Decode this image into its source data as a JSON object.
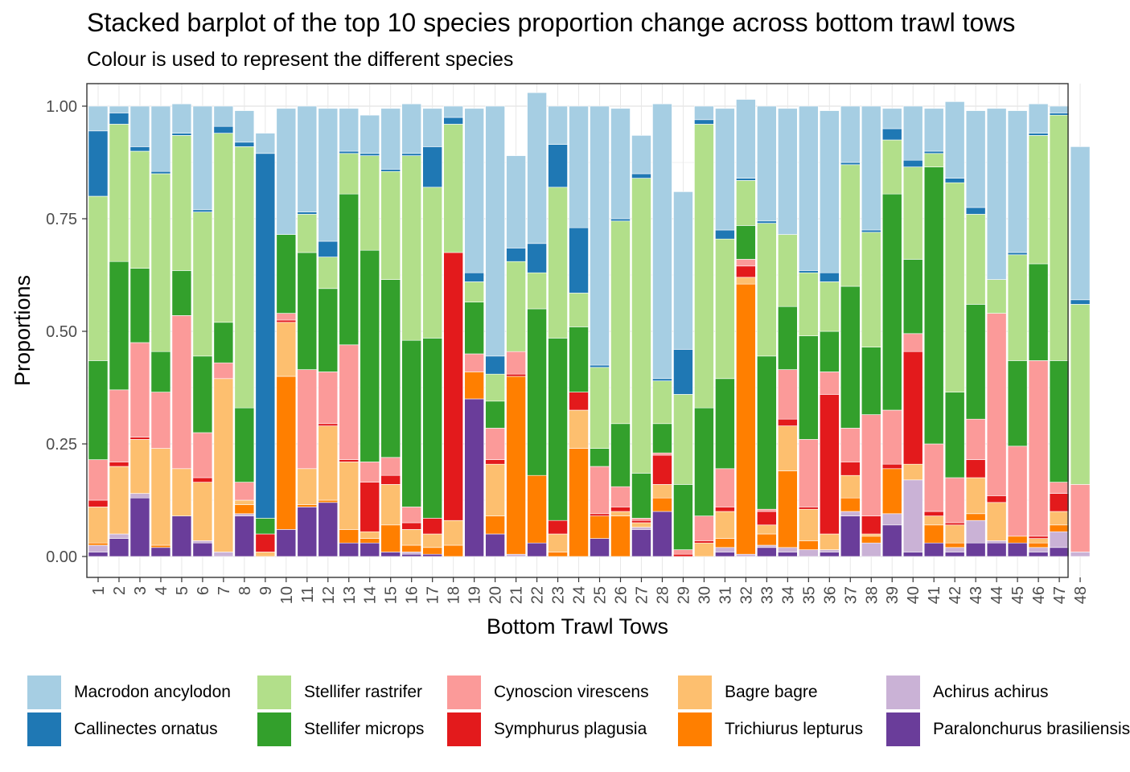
{
  "title": "Stacked barplot of the top 10 species proportion change across bottom trawl tows",
  "subtitle": "Colour is used to represent the different species",
  "chart_data": {
    "type": "bar",
    "stacked": true,
    "xlabel": "Bottom Trawl Tows",
    "ylabel": "Proportions",
    "ylim": [
      0,
      1
    ],
    "yticks": [
      "0.00",
      "0.25",
      "0.50",
      "0.75",
      "1.00"
    ],
    "grid": true,
    "legend_position": "bottom",
    "categories": [
      "1",
      "2",
      "3",
      "4",
      "5",
      "6",
      "7",
      "8",
      "9",
      "10",
      "11",
      "12",
      "13",
      "14",
      "15",
      "16",
      "17",
      "18",
      "19",
      "20",
      "21",
      "22",
      "23",
      "24",
      "25",
      "26",
      "27",
      "28",
      "29",
      "30",
      "31",
      "32",
      "33",
      "34",
      "35",
      "36",
      "37",
      "38",
      "39",
      "40",
      "41",
      "42",
      "43",
      "44",
      "45",
      "46",
      "47",
      "48"
    ],
    "series": [
      {
        "name": "Paralonchurus brasiliensis",
        "color": "#6A3D9A",
        "values": [
          0.01,
          0.04,
          0.13,
          0.02,
          0.09,
          0.03,
          0,
          0.09,
          0,
          0.06,
          0.11,
          0.12,
          0.03,
          0.03,
          0.01,
          0.005,
          0.005,
          0,
          0.35,
          0.05,
          0,
          0.03,
          0,
          0,
          0.04,
          0,
          0.06,
          0.1,
          0,
          0,
          0.01,
          0,
          0.02,
          0.01,
          0,
          0.01,
          0.09,
          0,
          0.07,
          0.01,
          0.03,
          0.01,
          0.03,
          0.03,
          0.03,
          0.01,
          0.02,
          0
        ]
      },
      {
        "name": "Achirus achirus",
        "color": "#CAB2D6",
        "values": [
          0.015,
          0.01,
          0.01,
          0,
          0,
          0.005,
          0.01,
          0.005,
          0,
          0,
          0,
          0,
          0,
          0,
          0,
          0.005,
          0,
          0,
          0,
          0,
          0.005,
          0,
          0,
          0,
          0,
          0,
          0.005,
          0,
          0,
          0,
          0.01,
          0.005,
          0.005,
          0.01,
          0.015,
          0.005,
          0.01,
          0.03,
          0.025,
          0.16,
          0,
          0.01,
          0.05,
          0.005,
          0,
          0.01,
          0.035,
          0.01
        ]
      },
      {
        "name": "Trichiurus lepturus",
        "color": "#FF7F00",
        "values": [
          0.005,
          0,
          0,
          0.005,
          0,
          0,
          0,
          0.02,
          0,
          0.34,
          0.005,
          0.005,
          0.03,
          0.01,
          0.06,
          0.015,
          0.015,
          0.025,
          0.06,
          0.04,
          0.395,
          0.15,
          0.01,
          0.24,
          0.05,
          0.09,
          0,
          0.03,
          0,
          0,
          0.02,
          0.6,
          0.025,
          0.17,
          0.02,
          0,
          0.03,
          0.015,
          0.1,
          0,
          0.04,
          0.01,
          0.015,
          0,
          0.015,
          0.01,
          0.015,
          0
        ]
      },
      {
        "name": "Bagre bagre",
        "color": "#FDBF6F",
        "values": [
          0.08,
          0.15,
          0.12,
          0.215,
          0.105,
          0.13,
          0.385,
          0.01,
          0.01,
          0.12,
          0.08,
          0.165,
          0.15,
          0.015,
          0.09,
          0.035,
          0.03,
          0.055,
          0,
          0.115,
          0,
          0,
          0.04,
          0.085,
          0,
          0.01,
          0.01,
          0.03,
          0,
          0.03,
          0.06,
          0.015,
          0.02,
          0.1,
          0.07,
          0.035,
          0.05,
          0.005,
          0,
          0.035,
          0.02,
          0.04,
          0.08,
          0.085,
          0,
          0.01,
          0.03,
          0
        ]
      },
      {
        "name": "Symphurus plagusia",
        "color": "#E31A1C",
        "values": [
          0.015,
          0.01,
          0.005,
          0,
          0,
          0.01,
          0,
          0,
          0.04,
          0.005,
          0,
          0.005,
          0.005,
          0.11,
          0.02,
          0.015,
          0.035,
          0.595,
          0,
          0.01,
          0.005,
          0,
          0.03,
          0.04,
          0.005,
          0.01,
          0.005,
          0.065,
          0.005,
          0.005,
          0.01,
          0.025,
          0.03,
          0.015,
          0.005,
          0.31,
          0.03,
          0.04,
          0.01,
          0.25,
          0.01,
          0.005,
          0.04,
          0.015,
          0,
          0.005,
          0.04,
          0
        ]
      },
      {
        "name": "Cynoscion virescens",
        "color": "#FB9A99",
        "values": [
          0.09,
          0.16,
          0.21,
          0.125,
          0.34,
          0.1,
          0.035,
          0.04,
          0,
          0.015,
          0.22,
          0.115,
          0.255,
          0.045,
          0.04,
          0.035,
          0,
          0,
          0.04,
          0.07,
          0.05,
          0,
          0,
          0,
          0.105,
          0.045,
          0.005,
          0.005,
          0.01,
          0.055,
          0.085,
          0.015,
          0.005,
          0.11,
          0.15,
          0.05,
          0.075,
          0.225,
          0.12,
          0.04,
          0.15,
          0.1,
          0.09,
          0.405,
          0.2,
          0.39,
          0.025,
          0.15
        ]
      },
      {
        "name": "Stellifer microps",
        "color": "#33A02C",
        "values": [
          0.22,
          0.285,
          0.165,
          0.09,
          0.1,
          0.17,
          0.09,
          0.165,
          0.035,
          0.175,
          0.26,
          0.185,
          0.335,
          0.47,
          0.395,
          0.37,
          0.4,
          0,
          0.115,
          0.06,
          0,
          0.37,
          0.405,
          0.145,
          0.04,
          0.14,
          0.1,
          0.065,
          0.145,
          0.24,
          0.2,
          0.075,
          0.34,
          0.14,
          0.23,
          0.09,
          0.315,
          0.15,
          0.48,
          0.165,
          0.615,
          0.19,
          0.255,
          0,
          0.19,
          0.215,
          0.27,
          0
        ]
      },
      {
        "name": "Stellifer rastrifer",
        "color": "#B2DF8A",
        "values": [
          0.365,
          0.305,
          0.26,
          0.395,
          0.3,
          0.32,
          0.42,
          0.58,
          0,
          0,
          0.085,
          0.07,
          0.09,
          0.21,
          0.24,
          0.41,
          0.335,
          0.285,
          0.045,
          0.06,
          0.2,
          0.08,
          0.335,
          0.075,
          0.18,
          0.45,
          0.655,
          0.095,
          0.2,
          0.63,
          0.31,
          0.1,
          0.295,
          0.16,
          0.14,
          0.11,
          0.27,
          0.255,
          0.12,
          0.205,
          0.03,
          0.465,
          0.2,
          0.075,
          0.235,
          0.285,
          0.545,
          0.4
        ]
      },
      {
        "name": "Callinectes ornatus",
        "color": "#1F78B4",
        "values": [
          0.145,
          0.025,
          0.01,
          0.005,
          0.005,
          0.005,
          0.015,
          0.01,
          0.81,
          0,
          0.005,
          0.035,
          0.005,
          0.005,
          0.005,
          0.005,
          0.09,
          0.015,
          0.02,
          0.04,
          0.03,
          0.065,
          0.095,
          0.145,
          0.005,
          0.005,
          0.01,
          0.005,
          0.1,
          0.01,
          0.02,
          0.005,
          0.005,
          0,
          0.005,
          0.02,
          0.005,
          0.005,
          0.025,
          0.015,
          0.005,
          0.01,
          0.015,
          0,
          0.005,
          0.005,
          0.005,
          0.01
        ]
      },
      {
        "name": "Macrodon ancylodon",
        "color": "#A6CEE3",
        "values": [
          0.055,
          0.015,
          0.09,
          0.145,
          0.065,
          0.23,
          0.045,
          0.07,
          0.045,
          0.28,
          0.235,
          0.295,
          0.095,
          0.085,
          0.135,
          0.11,
          0.085,
          0.025,
          0.365,
          0.555,
          0.205,
          0.335,
          0.085,
          0.27,
          0.575,
          0.245,
          0.085,
          0.61,
          0.35,
          0.03,
          0.27,
          0.175,
          0.255,
          0.28,
          0.365,
          0.36,
          0.125,
          0.275,
          0.045,
          0.12,
          0.095,
          0.17,
          0.215,
          0.38,
          0.315,
          0.065,
          0.015,
          0.34
        ]
      }
    ]
  },
  "legend": {
    "items": [
      {
        "label": "Macrodon ancylodon",
        "color": "#A6CEE3"
      },
      {
        "label": "Callinectes ornatus",
        "color": "#1F78B4"
      },
      {
        "label": "Stellifer rastrifer",
        "color": "#B2DF8A"
      },
      {
        "label": "Stellifer microps",
        "color": "#33A02C"
      },
      {
        "label": "Cynoscion virescens",
        "color": "#FB9A99"
      },
      {
        "label": "Symphurus plagusia",
        "color": "#E31A1C"
      },
      {
        "label": "Bagre bagre",
        "color": "#FDBF6F"
      },
      {
        "label": "Trichiurus lepturus",
        "color": "#FF7F00"
      },
      {
        "label": "Achirus achirus",
        "color": "#CAB2D6"
      },
      {
        "label": "Paralonchurus brasiliensis",
        "color": "#6A3D9A"
      }
    ]
  }
}
